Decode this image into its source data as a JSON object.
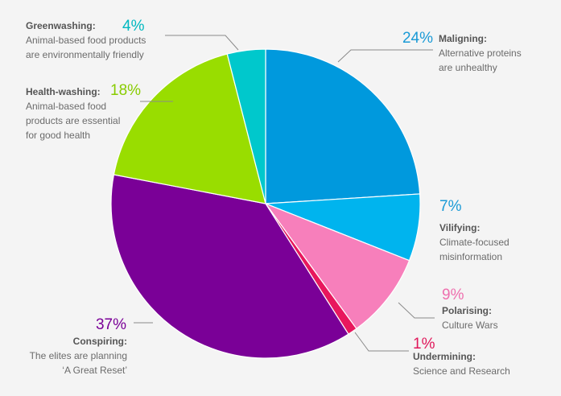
{
  "chart_data": {
    "type": "pie",
    "title": "",
    "slices": [
      {
        "category": "Maligning:",
        "description": [
          "Alternative proteins",
          "are unhealthy"
        ],
        "value": 24,
        "label": "24%",
        "color": "#0099dd"
      },
      {
        "category": "Vilifying:",
        "description": [
          "Climate-focused",
          "misinformation"
        ],
        "value": 7,
        "label": "7%",
        "color": "#00b4ee"
      },
      {
        "category": "Polarising:",
        "description": [
          "Culture Wars"
        ],
        "value": 9,
        "label": "9%",
        "color": "#f77fbb"
      },
      {
        "category": "Undermining:",
        "description": [
          "Science and Research"
        ],
        "value": 1,
        "label": "1%",
        "color": "#e8175d"
      },
      {
        "category": "Conspiring:",
        "description": [
          "The elites are planning",
          "‘A Great Reset’"
        ],
        "value": 37,
        "label": "37%",
        "color": "#7a0097"
      },
      {
        "category": "Health-washing:",
        "description": [
          "Animal-based food",
          "products are essential",
          "for good health"
        ],
        "value": 18,
        "label": "18%",
        "color": "#99dd00"
      },
      {
        "category": "Greenwashing:",
        "description": [
          "Animal-based food products",
          "are environmentally friendly"
        ],
        "value": 4,
        "label": "4%",
        "color": "#00c8cc"
      }
    ],
    "label_colors": {
      "Maligning:": "#1a9ad6",
      "Vilifying:": "#1a9ad6",
      "Polarising:": "#ee6fae",
      "Undermining:": "#e0175a",
      "Conspiring:": "#7a0097",
      "Health-washing:": "#88cc00",
      "Greenwashing:": "#00b8c0"
    }
  }
}
